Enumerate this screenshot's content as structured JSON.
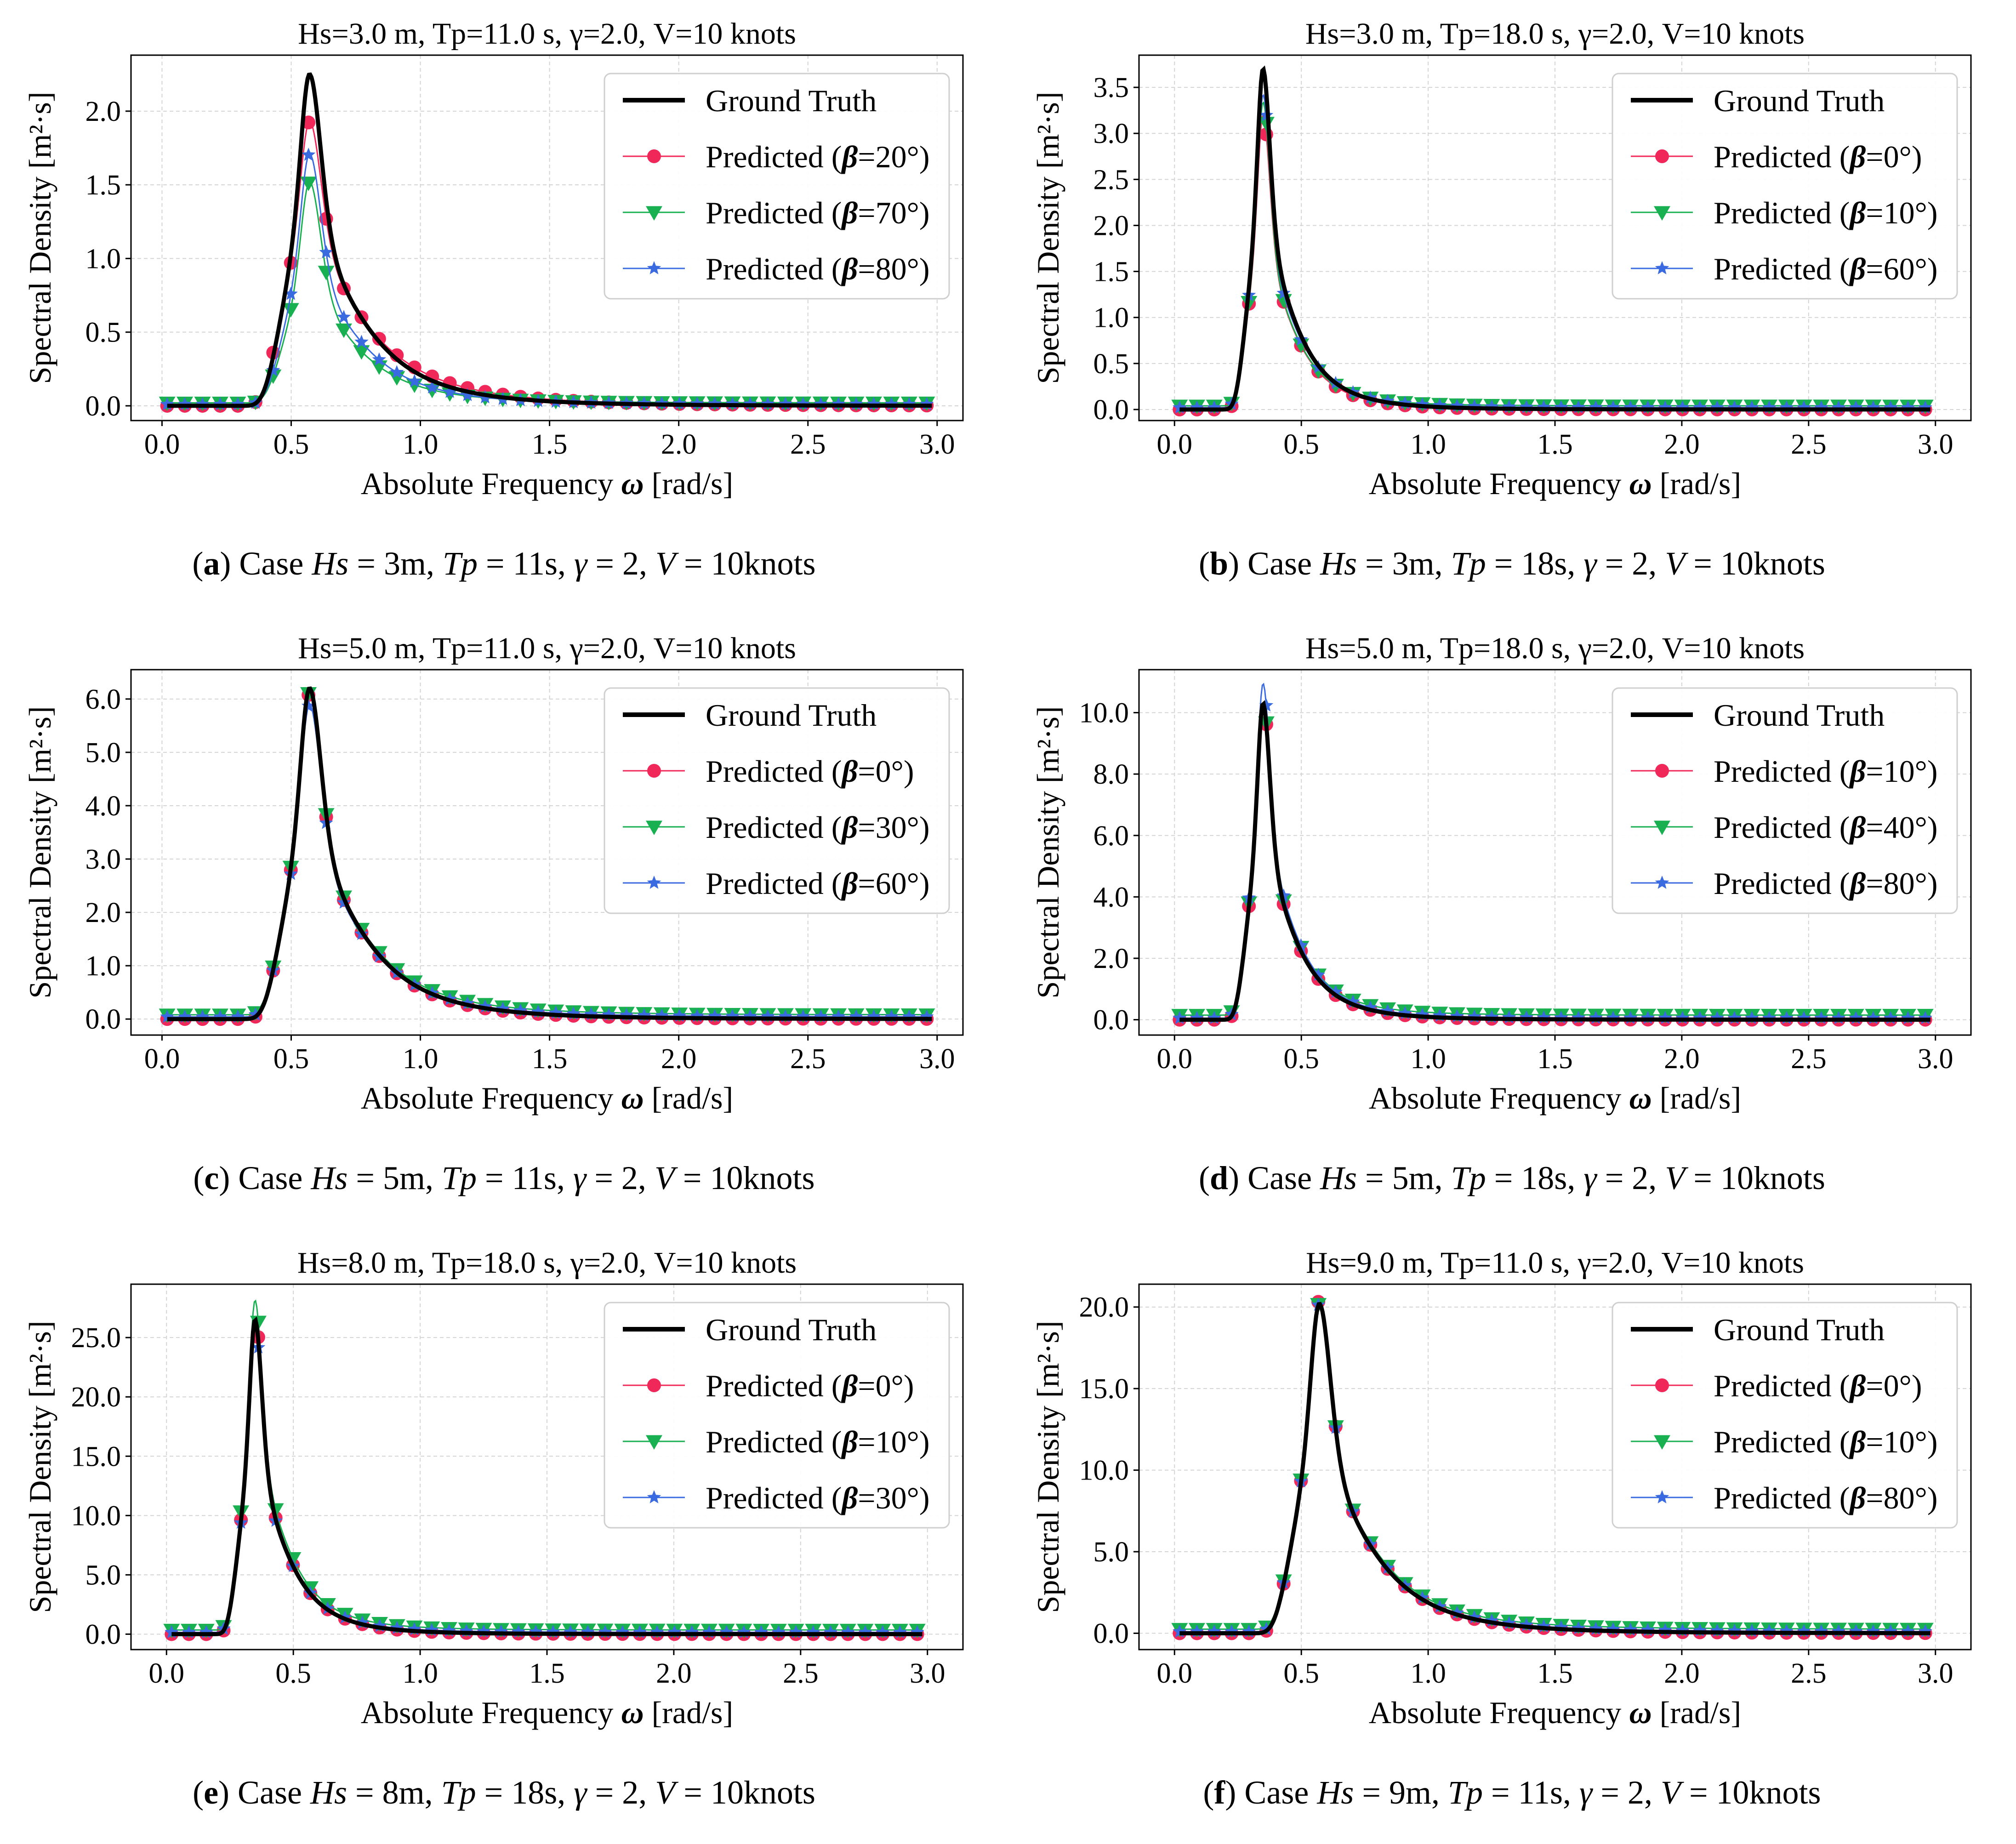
{
  "figure": {
    "panels": [
      {
        "letter": "a",
        "caption_prefix": "Case",
        "caption_params": [
          {
            "sym": "Hs",
            "val": " = 3m"
          },
          {
            "sym": "Tp",
            "val": " = 11s"
          },
          {
            "sym": "γ",
            "val": " = 2"
          },
          {
            "sym": "V",
            "val": " = 10knots"
          }
        ]
      },
      {
        "letter": "b",
        "caption_prefix": "Case",
        "caption_params": [
          {
            "sym": "Hs",
            "val": " = 3m"
          },
          {
            "sym": "Tp",
            "val": " = 18s"
          },
          {
            "sym": "γ",
            "val": " = 2"
          },
          {
            "sym": "V",
            "val": " = 10knots"
          }
        ]
      },
      {
        "letter": "c",
        "caption_prefix": "Case",
        "caption_params": [
          {
            "sym": "Hs",
            "val": " = 5m"
          },
          {
            "sym": "Tp",
            "val": " = 11s"
          },
          {
            "sym": "γ",
            "val": " = 2"
          },
          {
            "sym": "V",
            "val": " = 10knots"
          }
        ]
      },
      {
        "letter": "d",
        "caption_prefix": "Case",
        "caption_params": [
          {
            "sym": "Hs",
            "val": " = 5m"
          },
          {
            "sym": "Tp",
            "val": " = 18s"
          },
          {
            "sym": "γ",
            "val": " = 2"
          },
          {
            "sym": "V",
            "val": " = 10knots"
          }
        ]
      },
      {
        "letter": "e",
        "caption_prefix": "Case",
        "caption_params": [
          {
            "sym": "Hs",
            "val": " = 8m"
          },
          {
            "sym": "Tp",
            "val": " = 18s"
          },
          {
            "sym": "γ",
            "val": " = 2"
          },
          {
            "sym": "V",
            "val": " = 10knots"
          }
        ]
      },
      {
        "letter": "f",
        "caption_prefix": "Case",
        "caption_params": [
          {
            "sym": "Hs",
            "val": " = 9m"
          },
          {
            "sym": "Tp",
            "val": " = 11s"
          },
          {
            "sym": "γ",
            "val": " = 2"
          },
          {
            "sym": "V",
            "val": " = 10knots"
          }
        ]
      }
    ]
  },
  "chart_data": [
    {
      "type": "line",
      "title": "Hs=3.0 m, Tp=11.0 s, γ=2.0, V=10 knots",
      "xlabel_main": "Absolute Frequency ",
      "xlabel_sym": "ω",
      "xlabel_unit": " [rad/s]",
      "ylabel": "Spectral Density [m²·s]",
      "xlim": [
        -0.12,
        3.1
      ],
      "ylim": [
        -0.1,
        2.38
      ],
      "xticks": [
        0,
        0.5,
        1.0,
        1.5,
        2.0,
        2.5,
        3.0
      ],
      "xtick_labels": [
        "0.0",
        "0.5",
        "1.0",
        "1.5",
        "2.0",
        "2.5",
        "3.0"
      ],
      "yticks": [
        0,
        0.5,
        1.0,
        1.5,
        2.0
      ],
      "ytick_labels": [
        "0.0",
        "0.5",
        "1.0",
        "1.5",
        "2.0"
      ],
      "grid": true,
      "legend_position": "top-right",
      "spectrum": {
        "peak_omega": 0.571,
        "peak_value": 2.25
      },
      "series": [
        {
          "name": "Ground Truth",
          "color": "#000000",
          "marker": "none",
          "peak": 2.25,
          "offset": 0.0,
          "shape": 1.0
        },
        {
          "name": "Predicted (β=20°)",
          "legend_prefix": "Predicted (",
          "legend_sym": "β",
          "legend_suffix": "=20°)",
          "color": "#f0285a",
          "marker": "circle",
          "peak": 1.93,
          "offset": 0.0,
          "shape": 0.88
        },
        {
          "name": "Predicted (β=70°)",
          "legend_prefix": "Predicted (",
          "legend_sym": "β",
          "legend_suffix": "=70°)",
          "color": "#18b050",
          "marker": "triangle",
          "peak": 1.5,
          "offset": 0.02,
          "shape": 1.1
        },
        {
          "name": "Predicted (β=80°)",
          "legend_prefix": "Predicted (",
          "legend_sym": "β",
          "legend_suffix": "=80°)",
          "color": "#3a6ae0",
          "marker": "star",
          "peak": 1.7,
          "offset": 0.01,
          "shape": 1.05
        }
      ]
    },
    {
      "type": "line",
      "title": "Hs=3.0 m, Tp=18.0 s, γ=2.0, V=10 knots",
      "xlabel_main": "Absolute Frequency ",
      "xlabel_sym": "ω",
      "xlabel_unit": " [rad/s]",
      "ylabel": "Spectral Density [m²·s]",
      "xlim": [
        -0.14,
        3.14
      ],
      "ylim": [
        -0.12,
        3.85
      ],
      "xticks": [
        0,
        0.5,
        1.0,
        1.5,
        2.0,
        2.5,
        3.0
      ],
      "xtick_labels": [
        "0.0",
        "0.5",
        "1.0",
        "1.5",
        "2.0",
        "2.5",
        "3.0"
      ],
      "yticks": [
        0,
        0.5,
        1.0,
        1.5,
        2.0,
        2.5,
        3.0,
        3.5
      ],
      "ytick_labels": [
        "0.0",
        "0.5",
        "1.0",
        "1.5",
        "2.0",
        "2.5",
        "3.0",
        "3.5"
      ],
      "grid": true,
      "legend_position": "top-right",
      "spectrum": {
        "peak_omega": 0.349,
        "peak_value": 3.7
      },
      "series": [
        {
          "name": "Ground Truth",
          "color": "#000000",
          "marker": "none",
          "peak": 3.7,
          "offset": 0.0,
          "shape": 1.0
        },
        {
          "name": "Predicted (β=0°)",
          "legend_prefix": "Predicted (",
          "legend_sym": "β",
          "legend_suffix": "=0°)",
          "color": "#f0285a",
          "marker": "circle",
          "peak": 3.2,
          "offset": 0.0,
          "shape": 1.0
        },
        {
          "name": "Predicted (β=10°)",
          "legend_prefix": "Predicted (",
          "legend_sym": "β",
          "legend_suffix": "=10°)",
          "color": "#18b050",
          "marker": "triangle",
          "peak": 3.3,
          "offset": 0.04,
          "shape": 1.05
        },
        {
          "name": "Predicted (β=60°)",
          "legend_prefix": "Predicted (",
          "legend_sym": "β",
          "legend_suffix": "=60°)",
          "color": "#3a6ae0",
          "marker": "star",
          "peak": 3.4,
          "offset": 0.02,
          "shape": 1.0
        }
      ]
    },
    {
      "type": "line",
      "title": "Hs=5.0 m, Tp=11.0 s, γ=2.0, V=10 knots",
      "xlabel_main": "Absolute Frequency ",
      "xlabel_sym": "ω",
      "xlabel_unit": " [rad/s]",
      "ylabel": "Spectral Density [m²·s]",
      "xlim": [
        -0.12,
        3.1
      ],
      "ylim": [
        -0.3,
        6.55
      ],
      "xticks": [
        0,
        0.5,
        1.0,
        1.5,
        2.0,
        2.5,
        3.0
      ],
      "xtick_labels": [
        "0.0",
        "0.5",
        "1.0",
        "1.5",
        "2.0",
        "2.5",
        "3.0"
      ],
      "yticks": [
        0,
        1.0,
        2.0,
        3.0,
        4.0,
        5.0,
        6.0
      ],
      "ytick_labels": [
        "0.0",
        "1.0",
        "2.0",
        "3.0",
        "4.0",
        "5.0",
        "6.0"
      ],
      "grid": true,
      "legend_position": "top-right",
      "spectrum": {
        "peak_omega": 0.571,
        "peak_value": 6.2
      },
      "series": [
        {
          "name": "Ground Truth",
          "color": "#000000",
          "marker": "none",
          "peak": 6.2,
          "offset": 0.0,
          "shape": 1.0
        },
        {
          "name": "Predicted (β=0°)",
          "legend_prefix": "Predicted (",
          "legend_sym": "β",
          "legend_suffix": "=0°)",
          "color": "#f0285a",
          "marker": "circle",
          "peak": 6.1,
          "offset": 0.0,
          "shape": 1.0
        },
        {
          "name": "Predicted (β=30°)",
          "legend_prefix": "Predicted (",
          "legend_sym": "β",
          "legend_suffix": "=30°)",
          "color": "#18b050",
          "marker": "triangle",
          "peak": 6.05,
          "offset": 0.08,
          "shape": 1.0
        },
        {
          "name": "Predicted (β=60°)",
          "legend_prefix": "Predicted (",
          "legend_sym": "β",
          "legend_suffix": "=60°)",
          "color": "#3a6ae0",
          "marker": "star",
          "peak": 5.85,
          "offset": 0.04,
          "shape": 1.0
        }
      ]
    },
    {
      "type": "line",
      "title": "Hs=5.0 m, Tp=18.0 s, γ=2.0, V=10 knots",
      "xlabel_main": "Absolute Frequency ",
      "xlabel_sym": "ω",
      "xlabel_unit": " [rad/s]",
      "ylabel": "Spectral Density [m²·s]",
      "xlim": [
        -0.14,
        3.14
      ],
      "ylim": [
        -0.5,
        11.4
      ],
      "xticks": [
        0,
        0.5,
        1.0,
        1.5,
        2.0,
        2.5,
        3.0
      ],
      "xtick_labels": [
        "0.0",
        "0.5",
        "1.0",
        "1.5",
        "2.0",
        "2.5",
        "3.0"
      ],
      "yticks": [
        0,
        2.0,
        4.0,
        6.0,
        8.0,
        10.0
      ],
      "ytick_labels": [
        "0.0",
        "2.0",
        "4.0",
        "6.0",
        "8.0",
        "10.0"
      ],
      "grid": true,
      "legend_position": "top-right",
      "spectrum": {
        "peak_omega": 0.349,
        "peak_value": 10.3
      },
      "series": [
        {
          "name": "Ground Truth",
          "color": "#000000",
          "marker": "none",
          "peak": 10.3,
          "offset": 0.0,
          "shape": 1.0
        },
        {
          "name": "Predicted (β=10°)",
          "legend_prefix": "Predicted (",
          "legend_sym": "β",
          "legend_suffix": "=10°)",
          "color": "#f0285a",
          "marker": "circle",
          "peak": 10.3,
          "offset": 0.0,
          "shape": 1.0
        },
        {
          "name": "Predicted (β=40°)",
          "legend_prefix": "Predicted (",
          "legend_sym": "β",
          "legend_suffix": "=40°)",
          "color": "#18b050",
          "marker": "triangle",
          "peak": 10.2,
          "offset": 0.15,
          "shape": 1.0
        },
        {
          "name": "Predicted (β=80°)",
          "legend_prefix": "Predicted (",
          "legend_sym": "β",
          "legend_suffix": "=80°)",
          "color": "#3a6ae0",
          "marker": "star",
          "peak": 10.9,
          "offset": 0.05,
          "shape": 1.0
        }
      ]
    },
    {
      "type": "line",
      "title": "Hs=8.0 m, Tp=18.0 s, γ=2.0, V=10 knots",
      "xlabel_main": "Absolute Frequency ",
      "xlabel_sym": "ω",
      "xlabel_unit": " [rad/s]",
      "ylabel": "Spectral Density [m²·s]",
      "xlim": [
        -0.14,
        3.14
      ],
      "ylim": [
        -1.3,
        29.5
      ],
      "xticks": [
        0,
        0.5,
        1.0,
        1.5,
        2.0,
        2.5,
        3.0
      ],
      "xtick_labels": [
        "0.0",
        "0.5",
        "1.0",
        "1.5",
        "2.0",
        "2.5",
        "3.0"
      ],
      "yticks": [
        0,
        5.0,
        10.0,
        15.0,
        20.0,
        25.0
      ],
      "ytick_labels": [
        "0.0",
        "5.0",
        "10.0",
        "15.0",
        "20.0",
        "25.0"
      ],
      "grid": true,
      "legend_position": "top-right",
      "spectrum": {
        "peak_omega": 0.349,
        "peak_value": 26.5
      },
      "series": [
        {
          "name": "Ground Truth",
          "color": "#000000",
          "marker": "none",
          "peak": 26.5,
          "offset": 0.0,
          "shape": 1.0
        },
        {
          "name": "Predicted (β=0°)",
          "legend_prefix": "Predicted (",
          "legend_sym": "β",
          "legend_suffix": "=0°)",
          "color": "#f0285a",
          "marker": "circle",
          "peak": 26.8,
          "offset": 0.0,
          "shape": 1.0
        },
        {
          "name": "Predicted (β=10°)",
          "legend_prefix": "Predicted (",
          "legend_sym": "β",
          "legend_suffix": "=10°)",
          "color": "#18b050",
          "marker": "triangle",
          "peak": 27.8,
          "offset": 0.35,
          "shape": 1.0
        },
        {
          "name": "Predicted (β=30°)",
          "legend_prefix": "Predicted (",
          "legend_sym": "β",
          "legend_suffix": "=30°)",
          "color": "#3a6ae0",
          "marker": "star",
          "peak": 25.7,
          "offset": 0.15,
          "shape": 1.0
        }
      ]
    },
    {
      "type": "line",
      "title": "Hs=9.0 m, Tp=11.0 s, γ=2.0, V=10 knots",
      "xlabel_main": "Absolute Frequency ",
      "xlabel_sym": "ω",
      "xlabel_unit": " [rad/s]",
      "ylabel": "Spectral Density [m²·s]",
      "xlim": [
        -0.14,
        3.14
      ],
      "ylim": [
        -1.0,
        21.4
      ],
      "xticks": [
        0,
        0.5,
        1.0,
        1.5,
        2.0,
        2.5,
        3.0
      ],
      "xtick_labels": [
        "0.0",
        "0.5",
        "1.0",
        "1.5",
        "2.0",
        "2.5",
        "3.0"
      ],
      "yticks": [
        0,
        5.0,
        10.0,
        15.0,
        20.0
      ],
      "ytick_labels": [
        "0.0",
        "5.0",
        "10.0",
        "15.0",
        "20.0"
      ],
      "grid": true,
      "legend_position": "top-right",
      "spectrum": {
        "peak_omega": 0.571,
        "peak_value": 20.2
      },
      "series": [
        {
          "name": "Ground Truth",
          "color": "#000000",
          "marker": "none",
          "peak": 20.2,
          "offset": 0.0,
          "shape": 1.0
        },
        {
          "name": "Predicted (β=0°)",
          "legend_prefix": "Predicted (",
          "legend_sym": "β",
          "legend_suffix": "=0°)",
          "color": "#f0285a",
          "marker": "circle",
          "peak": 20.4,
          "offset": 0.0,
          "shape": 1.0
        },
        {
          "name": "Predicted (β=10°)",
          "legend_prefix": "Predicted (",
          "legend_sym": "β",
          "legend_suffix": "=10°)",
          "color": "#18b050",
          "marker": "triangle",
          "peak": 20.0,
          "offset": 0.25,
          "shape": 1.0
        },
        {
          "name": "Predicted (β=80°)",
          "legend_prefix": "Predicted (",
          "legend_sym": "β",
          "legend_suffix": "=80°)",
          "color": "#3a6ae0",
          "marker": "star",
          "peak": 20.1,
          "offset": 0.1,
          "shape": 1.0
        }
      ]
    }
  ]
}
